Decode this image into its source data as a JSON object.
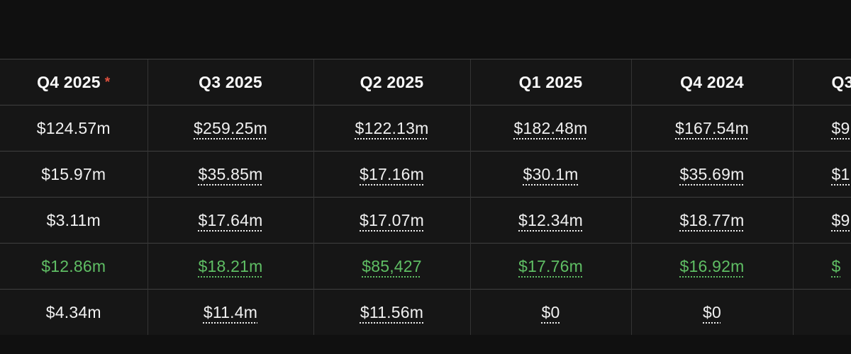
{
  "colors": {
    "background": "#101010",
    "cell_background": "#161616",
    "row_highlight_green": "#5fbe64",
    "asterisk_red": "#e2513f",
    "border_gray": "#3c3c3c",
    "text": "#f1f1f1"
  },
  "table": {
    "columns": [
      {
        "label": "Q4 2025",
        "marker": "*"
      },
      {
        "label": "Q3 2025",
        "marker": ""
      },
      {
        "label": "Q2 2025",
        "marker": ""
      },
      {
        "label": "Q1 2025",
        "marker": ""
      },
      {
        "label": "Q4 2024",
        "marker": ""
      },
      {
        "label": "Q3",
        "marker": "",
        "note": "column clipped at right edge of viewport"
      }
    ],
    "rows": [
      {
        "cells": [
          "$124.57m",
          "$259.25m",
          "$122.13m",
          "$182.48m",
          "$167.54m",
          "$9"
        ],
        "highlight": ""
      },
      {
        "cells": [
          "$15.97m",
          "$35.85m",
          "$17.16m",
          "$30.1m",
          "$35.69m",
          "$1"
        ],
        "highlight": ""
      },
      {
        "cells": [
          "$3.11m",
          "$17.64m",
          "$17.07m",
          "$12.34m",
          "$18.77m",
          "$9"
        ],
        "highlight": ""
      },
      {
        "cells": [
          "$12.86m",
          "$18.21m",
          "$85,427",
          "$17.76m",
          "$16.92m",
          "$"
        ],
        "highlight": "green"
      },
      {
        "cells": [
          "$4.34m",
          "$11.4m",
          "$11.56m",
          "$0",
          "$0",
          ""
        ],
        "highlight": ""
      }
    ]
  }
}
